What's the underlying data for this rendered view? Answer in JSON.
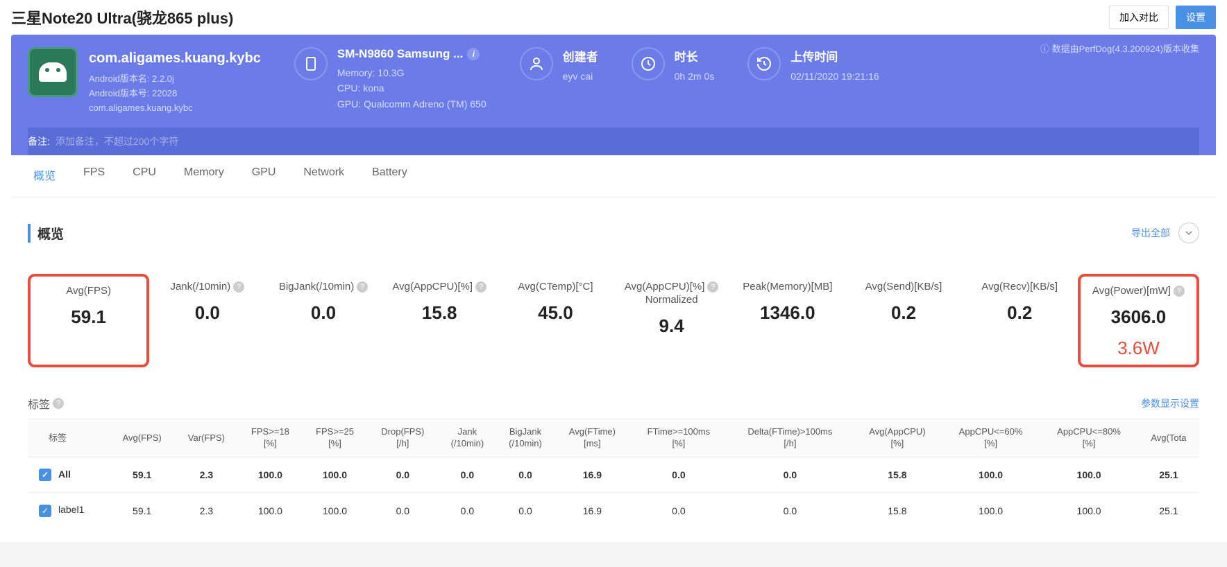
{
  "header": {
    "title": "三星Note20 Ultra(骁龙865 plus)",
    "compare_btn": "加入对比",
    "settings_btn": "设置"
  },
  "info": {
    "data_source": "数据由PerfDog(4.3.200924)版本收集",
    "app": {
      "name": "com.aligames.kuang.kybc",
      "version_name_label": "Android版本名: 2.2.0j",
      "version_code_label": "Android版本号: 22028",
      "package": "com.aligames.kuang.kybc"
    },
    "device": {
      "title": "SM-N9860 Samsung ...",
      "memory": "Memory: 10.3G",
      "cpu": "CPU: kona",
      "gpu": "GPU: Qualcomm Adreno (TM) 650"
    },
    "creator": {
      "label": "创建者",
      "value": "eyv cai"
    },
    "duration": {
      "label": "时长",
      "value": "0h 2m 0s"
    },
    "upload": {
      "label": "上传时间",
      "value": "02/11/2020 19:21:16"
    },
    "remark_label": "备注:",
    "remark_placeholder": "添加备注，不超过200个字符"
  },
  "tabs": [
    "概览",
    "FPS",
    "CPU",
    "Memory",
    "GPU",
    "Network",
    "Battery"
  ],
  "overview": {
    "title": "概览",
    "export_all": "导出全部",
    "metrics": [
      {
        "label": "Avg(FPS)",
        "value": "59.1",
        "highlight": "fps",
        "help": false
      },
      {
        "label": "Jank(/10min)",
        "value": "0.0",
        "help": true
      },
      {
        "label": "BigJank(/10min)",
        "value": "0.0",
        "help": true
      },
      {
        "label": "Avg(AppCPU)[%]",
        "value": "15.8",
        "help": true
      },
      {
        "label": "Avg(CTemp)[°C]",
        "value": "45.0",
        "help": false
      },
      {
        "label": "Avg(AppCPU)[%]\nNormalized",
        "value": "9.4",
        "help": true,
        "twoLine": true
      },
      {
        "label": "Peak(Memory)[MB]",
        "value": "1346.0",
        "help": false
      },
      {
        "label": "Avg(Send)[KB/s]",
        "value": "0.2",
        "help": false
      },
      {
        "label": "Avg(Recv)[KB/s]",
        "value": "0.2",
        "help": false
      },
      {
        "label": "Avg(Power)[mW]",
        "value": "3606.0",
        "highlight": "power",
        "extra": "3.6W",
        "help": true
      }
    ],
    "tags_label": "标签",
    "param_setting": "参数显示设置",
    "table": {
      "columns": [
        "标签",
        "Avg(FPS)",
        "Var(FPS)",
        "FPS>=18 [%]",
        "FPS>=25 [%]",
        "Drop(FPS) [/h]",
        "Jank (/10min)",
        "BigJank (/10min)",
        "Avg(FTime) [ms]",
        "FTime>=100ms [%]",
        "Delta(FTime)>100ms [/h]",
        "Avg(AppCPU) [%]",
        "AppCPU<=60% [%]",
        "AppCPU<=80% [%]",
        "Avg(Tota"
      ],
      "rows": [
        {
          "bold": true,
          "cells": [
            "All",
            "59.1",
            "2.3",
            "100.0",
            "100.0",
            "0.0",
            "0.0",
            "0.0",
            "16.9",
            "0.0",
            "0.0",
            "15.8",
            "100.0",
            "100.0",
            "25.1"
          ]
        },
        {
          "bold": false,
          "cells": [
            "label1",
            "59.1",
            "2.3",
            "100.0",
            "100.0",
            "0.0",
            "0.0",
            "0.0",
            "16.9",
            "0.0",
            "0.0",
            "15.8",
            "100.0",
            "100.0",
            "25.1"
          ]
        }
      ]
    }
  }
}
